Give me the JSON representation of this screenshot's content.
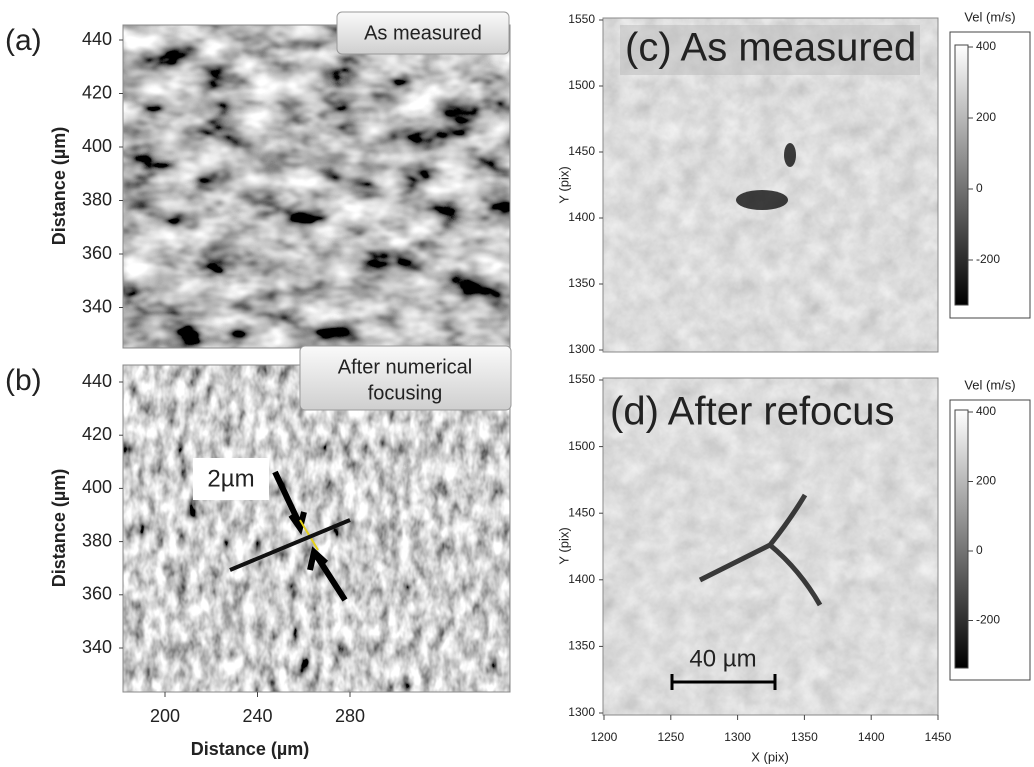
{
  "panels": [
    {
      "label": "(a)",
      "caption": "As measured",
      "y_label": "Distance (µm)",
      "yticks": [
        440,
        420,
        400,
        380,
        360,
        340
      ]
    },
    {
      "label": "(b)",
      "caption": [
        "After numerical",
        "focusing"
      ],
      "y_label": "Distance (µm)",
      "yticks": [
        440,
        420,
        400,
        380,
        360,
        340
      ],
      "xticks": [
        200,
        240,
        280
      ],
      "x_label": "Distance (µm)",
      "annotation": "2µm"
    },
    {
      "title": "(c) As measured",
      "y_label": "Y (pix)",
      "yticks": [
        1550,
        1500,
        1450,
        1400,
        1350,
        1300
      ],
      "colorbar": {
        "label": "Vel (m/s)",
        "ticks": [
          400,
          200,
          0,
          -200
        ]
      }
    },
    {
      "title": "(d) After refocus",
      "y_label": "Y (pix)",
      "yticks": [
        1550,
        1500,
        1450,
        1400,
        1350,
        1300
      ],
      "xticks": [
        1200,
        1250,
        1300,
        1350,
        1400,
        1450
      ],
      "x_label": "X (pix)",
      "scale_bar": "40 µm",
      "colorbar": {
        "label": "Vel (m/s)",
        "ticks": [
          400,
          200,
          0,
          -200
        ]
      }
    }
  ]
}
